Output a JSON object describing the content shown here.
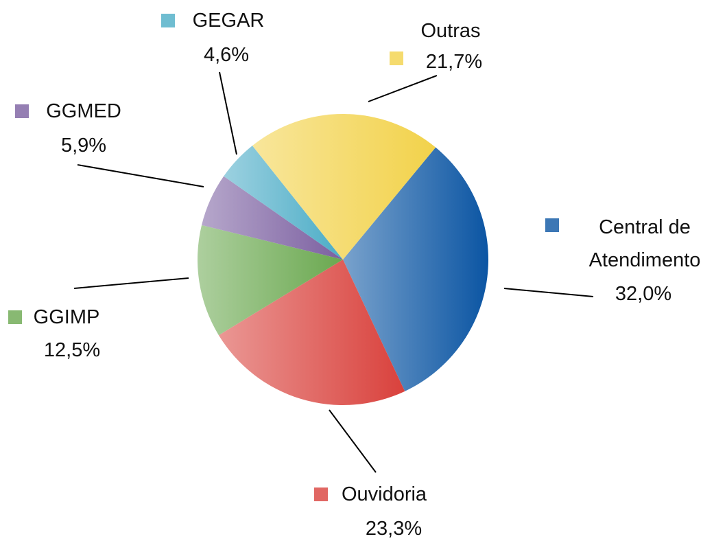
{
  "chart_data": {
    "type": "pie",
    "categories": [
      "Central de Atendimento",
      "Ouvidoria",
      "GGIMP",
      "GGMED",
      "GEGAR",
      "Outras"
    ],
    "values": [
      32.0,
      23.3,
      12.5,
      5.9,
      4.6,
      21.7
    ],
    "value_labels": [
      "32,0%",
      "23,3%",
      "12,5%",
      "5,9%",
      "4,6%",
      "21,7%"
    ],
    "colors": [
      "#0b55a3",
      "#d9413c",
      "#6aa84f",
      "#7b5fa0",
      "#4bacc6",
      "#f2d24a"
    ]
  }
}
